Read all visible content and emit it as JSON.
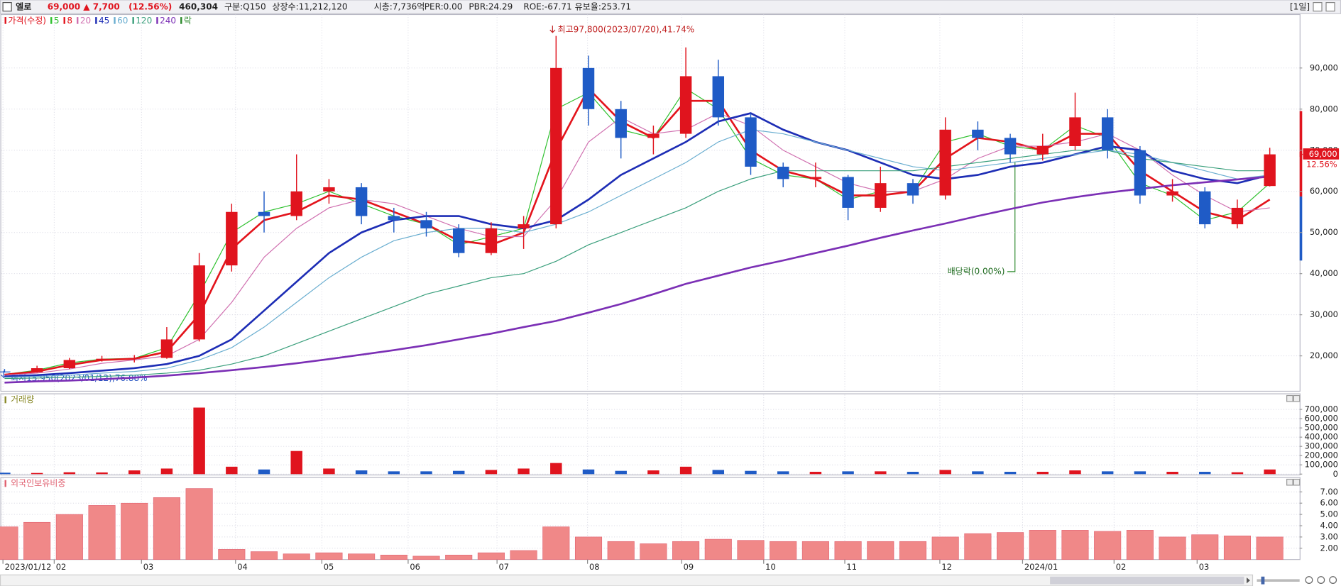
{
  "header": {
    "name": "엘로",
    "price": "69,000",
    "change": "▲ 7,700",
    "change_pct": "(12.56%)",
    "volume": "460,304",
    "market": "구분:Q150",
    "shares": "상장수:11,212,120",
    "market_cap": "시총:7,736억",
    "per": "PER:0.00",
    "pbr": "PBR:24.29",
    "roe": "ROE:-67.71",
    "reserve_ratio": "유보율:253.71",
    "period": "[1일]"
  },
  "chart_data": [
    {
      "type": "candlestick",
      "legend_title": "가격(수정)",
      "legend_extra": "락",
      "up_color": "#e0141e",
      "down_color": "#1f5bc6",
      "x": [
        0,
        1,
        2,
        3,
        4,
        5,
        6,
        7,
        8,
        9,
        10,
        11,
        12,
        13,
        14,
        15,
        16,
        17,
        18,
        19,
        20,
        21,
        22,
        23,
        24,
        25,
        26,
        27,
        28,
        29,
        30,
        31,
        32,
        33,
        34,
        35,
        36,
        37,
        38,
        39
      ],
      "open": [
        16200,
        16000,
        17000,
        19000,
        19300,
        19500,
        24000,
        42000,
        55000,
        54000,
        60000,
        61000,
        54000,
        53000,
        51000,
        45000,
        51000,
        52000,
        90000,
        80000,
        73000,
        74000,
        88000,
        78000,
        66000,
        63000,
        63500,
        56000,
        62000,
        59000,
        75000,
        73000,
        69000,
        71000,
        78000,
        70000,
        59000,
        60000,
        52000,
        61300
      ],
      "high": [
        16800,
        17600,
        19500,
        20000,
        20200,
        27000,
        45000,
        57000,
        60000,
        69000,
        63000,
        62000,
        56000,
        55000,
        52000,
        52500,
        54000,
        97800,
        93000,
        82000,
        76000,
        95000,
        92000,
        79000,
        67000,
        67000,
        64000,
        66000,
        63000,
        78000,
        77000,
        74000,
        74000,
        84000,
        80000,
        71000,
        63000,
        61000,
        58000,
        70600
      ],
      "low": [
        15950,
        15900,
        16800,
        18600,
        18400,
        19300,
        23500,
        40500,
        50000,
        53000,
        57000,
        52000,
        50000,
        49000,
        44000,
        44500,
        46000,
        51000,
        76000,
        68000,
        69000,
        73000,
        76000,
        64000,
        61000,
        61000,
        53000,
        55000,
        57000,
        58000,
        70000,
        67000,
        67500,
        70000,
        68000,
        57000,
        57500,
        51000,
        51000,
        61200
      ],
      "close": [
        16000,
        17000,
        19000,
        19300,
        19500,
        24000,
        42000,
        55000,
        54000,
        60000,
        61000,
        54000,
        53000,
        51000,
        45000,
        51000,
        52000,
        90000,
        80000,
        73000,
        74000,
        88000,
        78000,
        66000,
        63000,
        63500,
        56000,
        62000,
        59000,
        75000,
        73000,
        69000,
        71000,
        78000,
        70000,
        59000,
        60000,
        52000,
        56000,
        69000
      ],
      "series": [
        {
          "name": "5",
          "color": "#2fc12f",
          "width": 1,
          "values": [
            15500,
            16500,
            18300,
            19200,
            19400,
            22000,
            35000,
            50000,
            55000,
            57000,
            60000,
            57000,
            54000,
            52000,
            47000,
            49000,
            51000,
            80000,
            84000,
            75000,
            73000,
            85000,
            80000,
            68000,
            64000,
            63000,
            58000,
            60000,
            60000,
            72000,
            74000,
            71000,
            70000,
            76000,
            73000,
            62000,
            59000,
            53000,
            55000,
            62000
          ]
        },
        {
          "name": "8",
          "color": "#e3141c",
          "width": 2.2,
          "values": [
            15400,
            16200,
            17800,
            19000,
            19300,
            21000,
            30000,
            46000,
            53000,
            55000,
            59000,
            58000,
            55000,
            52000,
            48000,
            47000,
            50000,
            70000,
            85000,
            77000,
            73000,
            82000,
            82000,
            70000,
            65000,
            63000,
            59000,
            59000,
            60000,
            68000,
            73000,
            72000,
            70000,
            74000,
            74000,
            65000,
            60000,
            55000,
            53000,
            58000
          ]
        },
        {
          "name": "20",
          "color": "#d070b0",
          "width": 1,
          "values": [
            15300,
            15800,
            16800,
            18200,
            19000,
            20000,
            24000,
            33000,
            44000,
            51000,
            56000,
            58000,
            57000,
            54000,
            51000,
            49000,
            49000,
            58000,
            72000,
            78000,
            74000,
            75000,
            79000,
            76000,
            70000,
            66000,
            62000,
            60000,
            60000,
            63000,
            68000,
            71000,
            71000,
            72000,
            74000,
            70000,
            64000,
            59000,
            55000,
            56000
          ]
        },
        {
          "name": "45",
          "color": "#1d2db5",
          "width": 2.2,
          "values": [
            15000,
            15300,
            15800,
            16400,
            17000,
            18000,
            20000,
            24000,
            31000,
            38000,
            45000,
            50000,
            53000,
            54000,
            54000,
            52000,
            51000,
            53000,
            58000,
            64000,
            68000,
            72000,
            77000,
            79000,
            75000,
            72000,
            70000,
            67000,
            64000,
            63000,
            64000,
            66000,
            67000,
            69000,
            71000,
            70000,
            65000,
            63000,
            62000,
            64000
          ]
        },
        {
          "name": "60",
          "color": "#6aaed0",
          "width": 1,
          "values": [
            14800,
            15000,
            15300,
            15800,
            16200,
            17000,
            19000,
            22000,
            27000,
            33000,
            39000,
            44000,
            48000,
            50000,
            51000,
            51000,
            50000,
            52000,
            55000,
            59000,
            63000,
            67000,
            72000,
            75000,
            74000,
            72000,
            70000,
            68000,
            66000,
            65000,
            66000,
            67000,
            68000,
            69000,
            70000,
            69000,
            67000,
            65000,
            63000,
            64000
          ]
        },
        {
          "name": "120",
          "color": "#3a9f7c",
          "width": 1,
          "values": [
            14500,
            14600,
            14800,
            15000,
            15300,
            15800,
            16500,
            18000,
            20000,
            23000,
            26000,
            29000,
            32000,
            35000,
            37000,
            39000,
            40000,
            43000,
            47000,
            50000,
            53000,
            56000,
            60000,
            63000,
            65000,
            65000,
            65000,
            65000,
            65000,
            66000,
            67000,
            68000,
            69000,
            70000,
            70000,
            68000,
            67000,
            66000,
            65000,
            65000
          ]
        },
        {
          "name": "240",
          "color": "#7b2fb5",
          "width": 2.2,
          "values": [
            13500,
            13800,
            14000,
            14300,
            14700,
            15200,
            15800,
            16500,
            17300,
            18200,
            19200,
            20300,
            21400,
            22600,
            24000,
            25400,
            27000,
            28500,
            30500,
            32600,
            35000,
            37500,
            39500,
            41500,
            43200,
            45000,
            46800,
            48700,
            50500,
            52200,
            54000,
            55700,
            57300,
            58600,
            59700,
            60600,
            61500,
            62200,
            62900,
            63600
          ]
        }
      ],
      "xlim": [
        -0.13,
        39.92
      ],
      "ylim": [
        11400,
        103000
      ],
      "grid": true,
      "yticks": [
        {
          "value": 20000,
          "label": "20,000"
        },
        {
          "value": 30000,
          "label": "30,000"
        },
        {
          "value": 40000,
          "label": "40,000"
        },
        {
          "value": 50000,
          "label": "50,000"
        },
        {
          "value": 60000,
          "label": "60,000"
        },
        {
          "value": 70000,
          "label": "70,000"
        },
        {
          "value": 80000,
          "label": "80,000"
        },
        {
          "value": 90000,
          "label": "90,000"
        }
      ],
      "annotations": [
        {
          "text": "최고97,800(2023/07/20),41.74%"
        },
        {
          "text": "최저15,950(2023/01/12),76.88%"
        },
        {
          "text": "배당락(0.00%)"
        }
      ],
      "price_tag_change": "12.56%"
    },
    {
      "type": "bar",
      "title": "거래량",
      "up_color": "#e0141e",
      "down_color": "#1f5bc6",
      "x": [
        0,
        1,
        2,
        3,
        4,
        5,
        6,
        7,
        8,
        9,
        10,
        11,
        12,
        13,
        14,
        15,
        16,
        17,
        18,
        19,
        20,
        21,
        22,
        23,
        24,
        25,
        26,
        27,
        28,
        29,
        30,
        31,
        32,
        33,
        34,
        35,
        36,
        37,
        38,
        39
      ],
      "values": [
        15000,
        12000,
        20000,
        18000,
        40000,
        60000,
        720000,
        80000,
        50000,
        250000,
        60000,
        40000,
        30000,
        30000,
        35000,
        45000,
        60000,
        120000,
        50000,
        35000,
        40000,
        80000,
        45000,
        35000,
        30000,
        25000,
        30000,
        30000,
        25000,
        45000,
        30000,
        25000,
        25000,
        40000,
        30000,
        30000,
        25000,
        25000,
        20000,
        50000
      ],
      "xlim": [
        -0.13,
        39.92
      ],
      "ylim": [
        0,
        860000
      ],
      "grid": true,
      "yticks": [
        0,
        {
          "value": 100000,
          "label": "100,000"
        },
        {
          "value": 200000,
          "label": "200,000"
        },
        {
          "value": 300000,
          "label": "300,000"
        },
        {
          "value": 400000,
          "label": "400,000"
        },
        {
          "value": 500000,
          "label": "500,000"
        },
        {
          "value": 600000,
          "label": "600,000"
        },
        {
          "value": 700000,
          "label": "700,000"
        }
      ]
    },
    {
      "type": "bar",
      "title": "외국인보유비중",
      "color": "#f08888",
      "x": [
        0,
        1,
        2,
        3,
        4,
        5,
        6,
        7,
        8,
        9,
        10,
        11,
        12,
        13,
        14,
        15,
        16,
        17,
        18,
        19,
        20,
        21,
        22,
        23,
        24,
        25,
        26,
        27,
        28,
        29,
        30,
        31,
        32,
        33,
        34,
        35,
        36,
        37,
        38,
        39
      ],
      "values": [
        3.9,
        4.3,
        5.0,
        5.8,
        6.0,
        6.5,
        7.3,
        1.9,
        1.7,
        1.5,
        1.6,
        1.5,
        1.4,
        1.3,
        1.4,
        1.6,
        1.8,
        3.9,
        3.0,
        2.6,
        2.4,
        2.6,
        2.8,
        2.7,
        2.6,
        2.6,
        2.6,
        2.6,
        2.6,
        3.0,
        3.3,
        3.4,
        3.6,
        3.6,
        3.5,
        3.6,
        3.0,
        3.2,
        3.1,
        3.0
      ],
      "xlim": [
        -0.13,
        39.92
      ],
      "ylim": [
        1,
        8.2
      ],
      "grid": true,
      "yticks": [
        {
          "value": 2,
          "label": "2.00"
        },
        {
          "value": 3,
          "label": "3.00"
        },
        {
          "value": 4,
          "label": "4.00"
        },
        {
          "value": 5,
          "label": "5.00"
        },
        {
          "value": 6,
          "label": "6.00"
        },
        {
          "value": 7,
          "label": "7.00"
        }
      ],
      "xticks": [
        {
          "value": -0.05,
          "label": "2023/01/12"
        },
        {
          "value": 1.53,
          "label": "02"
        },
        {
          "value": 4.22,
          "label": "03"
        },
        {
          "value": 7.12,
          "label": "04"
        },
        {
          "value": 9.78,
          "label": "05"
        },
        {
          "value": 12.44,
          "label": "06"
        },
        {
          "value": 15.18,
          "label": "07"
        },
        {
          "value": 17.97,
          "label": "08"
        },
        {
          "value": 20.87,
          "label": "09"
        },
        {
          "value": 23.4,
          "label": "10"
        },
        {
          "value": 25.9,
          "label": "11"
        },
        {
          "value": 28.83,
          "label": "12"
        },
        {
          "value": 31.38,
          "label": "2024/01"
        },
        {
          "value": 34.2,
          "label": "02"
        },
        {
          "value": 36.76,
          "label": "03"
        }
      ]
    }
  ]
}
